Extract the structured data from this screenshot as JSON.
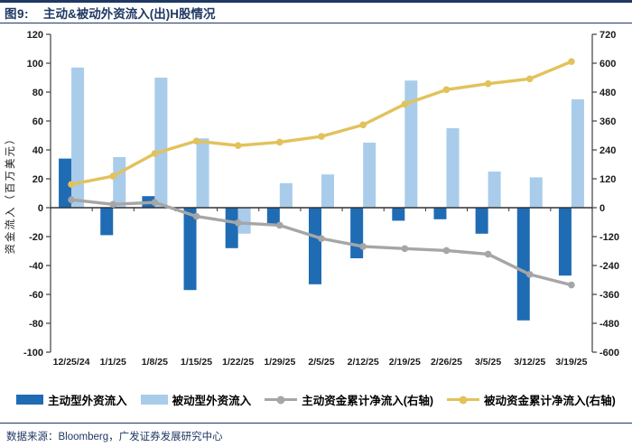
{
  "header": {
    "figure_label": "图9:",
    "title": "主动&被动外资流入(出)H股情况"
  },
  "footer": {
    "source": "数据来源：Bloomberg，广发证券发展研究中心"
  },
  "colors": {
    "navy": "#1F3864",
    "active_bar": "#1F6CB4",
    "passive_bar": "#A9CCEA",
    "active_line": "#A6A6A6",
    "passive_line": "#E2C25B",
    "axis": "#404040"
  },
  "chart_data": {
    "type": "bar",
    "subtype": "combo-bar-line-dual-axis",
    "categories": [
      "12/25/24",
      "1/1/25",
      "1/8/25",
      "1/15/25",
      "1/22/25",
      "1/29/25",
      "2/5/25",
      "2/12/25",
      "2/19/25",
      "2/26/25",
      "3/5/25",
      "3/12/25",
      "3/19/25"
    ],
    "series": [
      {
        "name": "主动型外资流入",
        "type": "bar",
        "axis": "left",
        "color": "#1F6CB4",
        "values": [
          34,
          -19,
          8,
          -57,
          -28,
          -11,
          -53,
          -35,
          -9,
          -8,
          -18,
          -78,
          -47
        ]
      },
      {
        "name": "被动型外资流入",
        "type": "bar",
        "axis": "left",
        "color": "#A9CCEA",
        "values": [
          97,
          35,
          90,
          48,
          -18,
          17,
          23,
          45,
          88,
          55,
          25,
          21,
          75
        ]
      },
      {
        "name": "主动资金累计净流入(右轴)",
        "type": "line",
        "axis": "right",
        "color": "#A6A6A6",
        "values": [
          33,
          14,
          22,
          -36,
          -63,
          -73,
          -128,
          -161,
          -170,
          -178,
          -193,
          -277,
          -321
        ]
      },
      {
        "name": "被动资金累计净流入(右轴)",
        "type": "line",
        "axis": "right",
        "color": "#E2C25B",
        "values": [
          97,
          131,
          225,
          277,
          258,
          272,
          296,
          344,
          430,
          490,
          515,
          535,
          607
        ]
      }
    ],
    "left_axis": {
      "label": "资金流入（百万美元）",
      "min": -100,
      "max": 120,
      "ticks": [
        120,
        100,
        80,
        60,
        40,
        20,
        0,
        -20,
        -40,
        -60,
        -80,
        -100
      ]
    },
    "right_axis": {
      "label": "",
      "min": -600,
      "max": 720,
      "ticks": [
        720,
        600,
        480,
        360,
        240,
        120,
        0,
        -120,
        -240,
        -360,
        -480,
        -600
      ]
    },
    "grid": false,
    "legend_position": "bottom"
  }
}
